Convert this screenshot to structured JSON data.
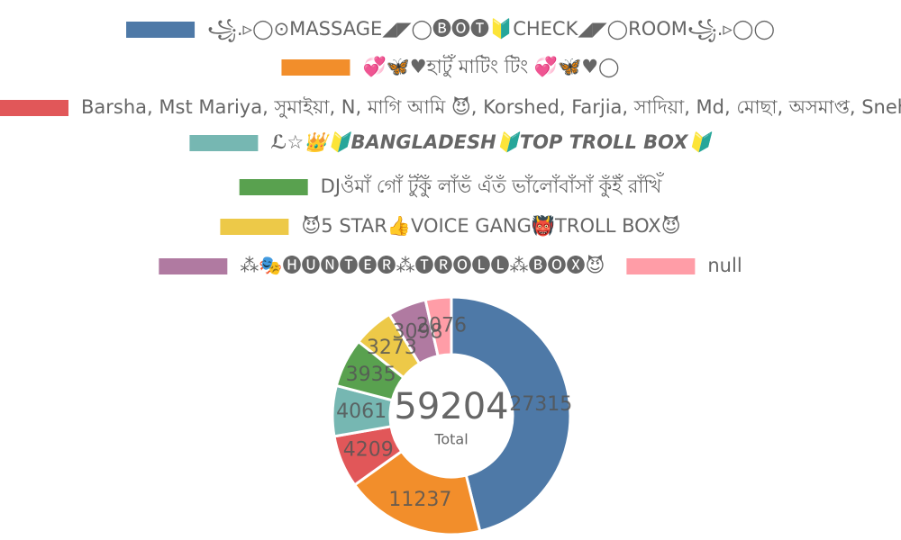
{
  "chart_data": {
    "type": "doughnut",
    "categories": [
      "꧁.▹◯⊙MASSAGE◢◤◯🅑🅞🅣🔰CHECK◢◤◯ROOM꧁.▹◯◯",
      "💞🦋♥হাটুঁ মাটিং টিং 💞🦋♥◯",
      "Barsha, Mst Mariya, সুমাইয়া, N, মাগি আমি 😈, Korshed, Farjia, সাদিয়া, Md, মোছা, অসমাপ্ত, Sneha, Md",
      "ℒ☆👑🔰BANGLADESH🔰TOP TROLL BOX🔰",
      "DJওঁমাঁ গোঁ টুঁকুঁ লাঁভঁ এঁতঁ ভাঁলোঁবাঁসাঁ কুঁইঁ রাঁখিঁ",
      "😈5 STAR👍VOICE GANG👹TROLL BOX😈",
      "⁂🎭🅗🅤🅝🅣🅔🅡⁂🅣🅡🅞🅛🅛⁂🅑🅞🅧😈",
      "null"
    ],
    "values": [
      27315,
      11237,
      4209,
      4061,
      3935,
      3273,
      3098,
      2076
    ],
    "colors": [
      "#4e79a7",
      "#f28e2b",
      "#e15759",
      "#76b7b2",
      "#59a14f",
      "#edc948",
      "#b07aa1",
      "#ff9da7"
    ],
    "center_value": 59204,
    "center_label": "Total",
    "legend": "top"
  }
}
